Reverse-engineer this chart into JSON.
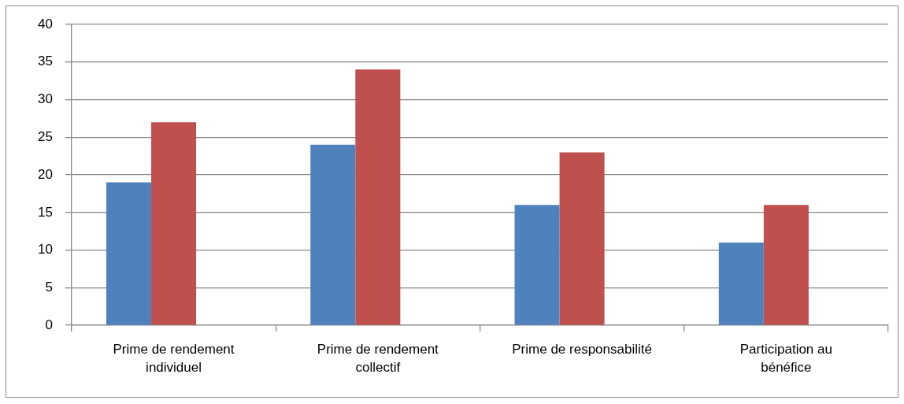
{
  "chart_data": {
    "type": "bar",
    "categories": [
      "Prime de rendement individuel",
      "Prime de rendement collectif",
      "Prime de responsabilité",
      "Participation au bénéfice"
    ],
    "series": [
      {
        "color": "#4f81bd",
        "values": [
          19,
          24,
          16,
          11
        ]
      },
      {
        "color": "#c0504d",
        "values": [
          27,
          34,
          23,
          16
        ]
      },
      {
        "values": [
          null,
          null,
          null,
          null
        ]
      }
    ],
    "ylim": [
      0,
      40
    ],
    "yticks": [
      0,
      5,
      10,
      15,
      20,
      25,
      30,
      35,
      40
    ],
    "grid": "y"
  }
}
